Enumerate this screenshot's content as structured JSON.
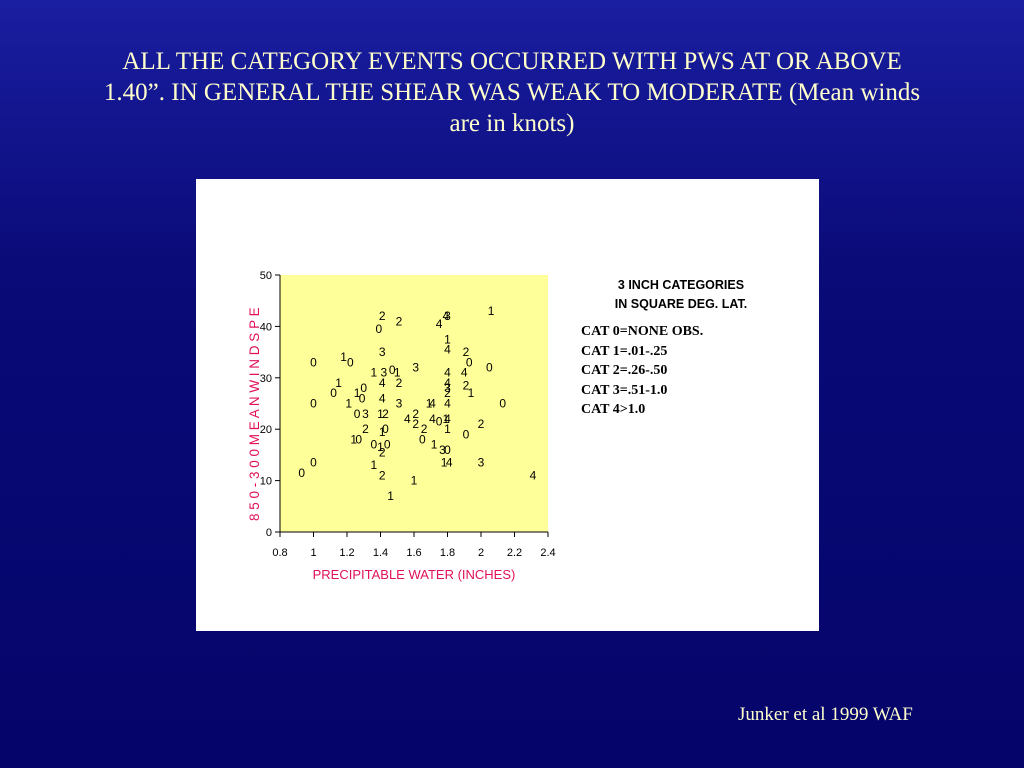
{
  "slide": {
    "title": "ALL THE CATEGORY EVENTS OCCURRED WITH PWS AT OR ABOVE 1.40”.  IN GENERAL THE SHEAR WAS WEAK TO MODERATE (Mean winds are in knots)",
    "credit": "Junker et al 1999 WAF"
  },
  "colors": {
    "background": "#0a0a78",
    "title_text": "#ffffcc",
    "plot_fill": "#ffff99",
    "axis_label": "#e0105a"
  },
  "legend": {
    "title_line1": "3 INCH CATEGORIES",
    "title_line2": "IN SQUARE DEG. LAT.",
    "items": [
      "CAT 0=NONE OBS.",
      "CAT 1=.01-.25",
      "CAT 2=.26-.50",
      "CAT 3=.51-1.0",
      "CAT 4>1.0"
    ]
  },
  "chart_data": {
    "type": "scatter",
    "xlabel": "PRECIPITABLE WATER (INCHES)",
    "ylabel": "8 5 0 - 3 0 0   M E A N   W I N D   S P E",
    "xlim": [
      0.8,
      2.4
    ],
    "ylim": [
      0,
      50
    ],
    "x_ticks": [
      "0.8",
      "1",
      "1.2",
      "1.4",
      "1.6",
      "1.8",
      "2",
      "2.2",
      "2.4"
    ],
    "y_ticks": [
      "0",
      "10",
      "20",
      "30",
      "40",
      "50"
    ],
    "grid": false,
    "markers": "category digits",
    "points": [
      {
        "x": 1.41,
        "y": 42,
        "label": "2"
      },
      {
        "x": 1.51,
        "y": 41,
        "label": "2"
      },
      {
        "x": 1.39,
        "y": 39.5,
        "label": "0"
      },
      {
        "x": 1.75,
        "y": 40.5,
        "label": "4"
      },
      {
        "x": 1.79,
        "y": 42,
        "label": "4"
      },
      {
        "x": 1.8,
        "y": 42,
        "label": "3"
      },
      {
        "x": 2.06,
        "y": 43,
        "label": "1"
      },
      {
        "x": 1.8,
        "y": 37.5,
        "label": "1"
      },
      {
        "x": 1.8,
        "y": 35.5,
        "label": "4"
      },
      {
        "x": 1.41,
        "y": 35,
        "label": "3"
      },
      {
        "x": 1.91,
        "y": 35,
        "label": "2"
      },
      {
        "x": 1.0,
        "y": 33,
        "label": "0"
      },
      {
        "x": 1.18,
        "y": 34,
        "label": "1"
      },
      {
        "x": 1.22,
        "y": 33,
        "label": "0"
      },
      {
        "x": 1.93,
        "y": 33,
        "label": "0"
      },
      {
        "x": 2.05,
        "y": 32,
        "label": "0"
      },
      {
        "x": 1.36,
        "y": 31,
        "label": "1"
      },
      {
        "x": 1.42,
        "y": 31,
        "label": "3"
      },
      {
        "x": 1.47,
        "y": 31.5,
        "label": "0"
      },
      {
        "x": 1.5,
        "y": 31,
        "label": "1"
      },
      {
        "x": 1.61,
        "y": 32,
        "label": "3"
      },
      {
        "x": 1.8,
        "y": 31,
        "label": "4"
      },
      {
        "x": 1.9,
        "y": 31,
        "label": "4"
      },
      {
        "x": 1.15,
        "y": 29,
        "label": "1"
      },
      {
        "x": 1.41,
        "y": 29,
        "label": "4"
      },
      {
        "x": 1.51,
        "y": 29,
        "label": "2"
      },
      {
        "x": 1.8,
        "y": 29,
        "label": "4"
      },
      {
        "x": 1.8,
        "y": 28,
        "label": "3"
      },
      {
        "x": 1.91,
        "y": 28.5,
        "label": "2"
      },
      {
        "x": 1.12,
        "y": 27,
        "label": "0"
      },
      {
        "x": 1.3,
        "y": 28,
        "label": "0"
      },
      {
        "x": 1.26,
        "y": 27,
        "label": "1"
      },
      {
        "x": 1.8,
        "y": 27,
        "label": "2"
      },
      {
        "x": 1.94,
        "y": 27,
        "label": "1"
      },
      {
        "x": 1.0,
        "y": 25,
        "label": "0"
      },
      {
        "x": 1.21,
        "y": 25,
        "label": "1"
      },
      {
        "x": 1.29,
        "y": 26,
        "label": "0"
      },
      {
        "x": 1.41,
        "y": 26,
        "label": "4"
      },
      {
        "x": 1.51,
        "y": 25,
        "label": "3"
      },
      {
        "x": 1.69,
        "y": 25,
        "label": "1"
      },
      {
        "x": 1.71,
        "y": 25,
        "label": "4"
      },
      {
        "x": 1.8,
        "y": 25,
        "label": "4"
      },
      {
        "x": 2.13,
        "y": 25,
        "label": "0"
      },
      {
        "x": 1.26,
        "y": 23,
        "label": "0"
      },
      {
        "x": 1.31,
        "y": 23,
        "label": "3"
      },
      {
        "x": 1.4,
        "y": 23,
        "label": "1"
      },
      {
        "x": 1.43,
        "y": 23,
        "label": "2"
      },
      {
        "x": 1.56,
        "y": 22,
        "label": "4"
      },
      {
        "x": 1.61,
        "y": 23,
        "label": "2"
      },
      {
        "x": 1.71,
        "y": 22,
        "label": "4"
      },
      {
        "x": 1.75,
        "y": 21.5,
        "label": "0"
      },
      {
        "x": 1.79,
        "y": 22,
        "label": "1"
      },
      {
        "x": 1.8,
        "y": 22,
        "label": "4"
      },
      {
        "x": 1.61,
        "y": 21,
        "label": "2"
      },
      {
        "x": 1.66,
        "y": 20,
        "label": "2"
      },
      {
        "x": 2.0,
        "y": 21,
        "label": "2"
      },
      {
        "x": 1.31,
        "y": 20,
        "label": "2"
      },
      {
        "x": 1.41,
        "y": 19.5,
        "label": "1"
      },
      {
        "x": 1.43,
        "y": 20,
        "label": "0"
      },
      {
        "x": 1.8,
        "y": 20,
        "label": "1"
      },
      {
        "x": 1.91,
        "y": 19,
        "label": "0"
      },
      {
        "x": 1.24,
        "y": 18,
        "label": "1"
      },
      {
        "x": 1.27,
        "y": 18,
        "label": "0"
      },
      {
        "x": 1.65,
        "y": 18,
        "label": "0"
      },
      {
        "x": 1.36,
        "y": 17,
        "label": "0"
      },
      {
        "x": 1.4,
        "y": 16.5,
        "label": "1"
      },
      {
        "x": 1.44,
        "y": 17,
        "label": "0"
      },
      {
        "x": 1.72,
        "y": 17,
        "label": "1"
      },
      {
        "x": 1.41,
        "y": 15.5,
        "label": "2"
      },
      {
        "x": 1.77,
        "y": 16,
        "label": "3"
      },
      {
        "x": 1.8,
        "y": 16,
        "label": "0"
      },
      {
        "x": 1.0,
        "y": 13.5,
        "label": "0"
      },
      {
        "x": 1.36,
        "y": 13,
        "label": "1"
      },
      {
        "x": 1.78,
        "y": 13.5,
        "label": "1"
      },
      {
        "x": 1.81,
        "y": 13.5,
        "label": "4"
      },
      {
        "x": 2.0,
        "y": 13.5,
        "label": "3"
      },
      {
        "x": 0.93,
        "y": 11.5,
        "label": "0"
      },
      {
        "x": 1.41,
        "y": 11,
        "label": "2"
      },
      {
        "x": 1.6,
        "y": 10,
        "label": "1"
      },
      {
        "x": 2.31,
        "y": 11,
        "label": "4"
      },
      {
        "x": 1.46,
        "y": 7,
        "label": "1"
      }
    ]
  }
}
